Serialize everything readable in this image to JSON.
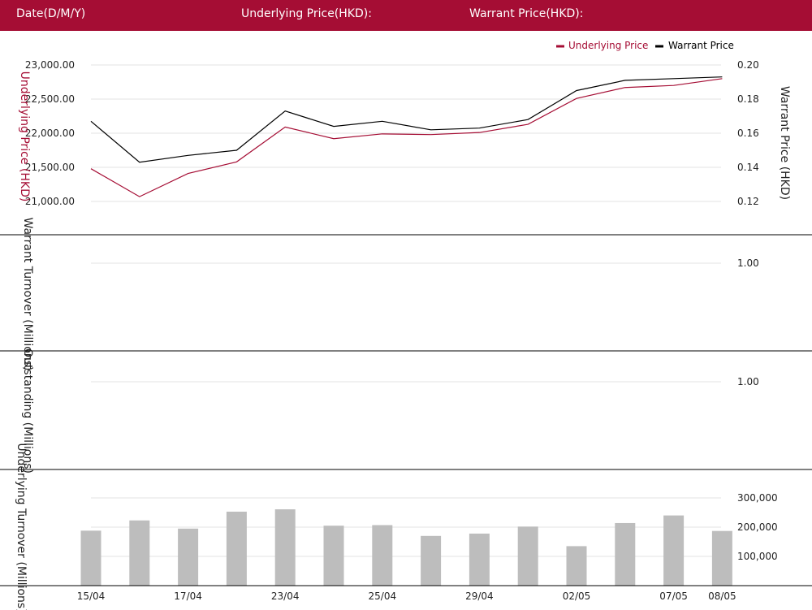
{
  "header": {
    "date_label": "Date(D/M/Y)",
    "underlying_label": "Underlying Price(HKD):",
    "warrant_label": "Warrant Price(HKD):"
  },
  "colors": {
    "brand": "#a50d34",
    "underlying_line": "#a50d34",
    "warrant_line": "#000000",
    "bars": "#bdbdbd",
    "grid": "#e3e3e3"
  },
  "chart_data": [
    {
      "type": "line",
      "legend": [
        "Underlying Price",
        "Warrant Price"
      ],
      "legend_position": "top-right",
      "ylabel": "Underlying Price (HKD)",
      "y2label": "Warrant  Price (HKD)",
      "y_ticks": [
        "23,000.00",
        "22,500.00",
        "22,000.00",
        "21,500.00",
        "21,000.00"
      ],
      "y_tick_values": [
        23000,
        22500,
        22000,
        21500,
        21000
      ],
      "y2_ticks": [
        "0.20",
        "0.18",
        "0.16",
        "0.14",
        "0.12"
      ],
      "y2_tick_values": [
        0.2,
        0.18,
        0.16,
        0.14,
        0.12
      ],
      "ylim": [
        20500,
        23000
      ],
      "y2lim": [
        0.1,
        0.2
      ],
      "grid": true,
      "series": [
        {
          "name": "Underlying Price",
          "axis": "left",
          "values": [
            21480,
            21070,
            21410,
            21580,
            22090,
            21920,
            21990,
            21980,
            22010,
            22130,
            22510,
            22670,
            22700,
            22800
          ]
        },
        {
          "name": "Warrant Price",
          "axis": "right",
          "values": [
            0.167,
            0.143,
            0.147,
            0.15,
            0.173,
            0.164,
            0.167,
            0.162,
            0.163,
            0.168,
            0.185,
            0.191,
            0.192,
            0.193
          ]
        }
      ]
    },
    {
      "type": "bar",
      "ylabel": "Warrant  Turnover (Millions)",
      "y_ticks": [
        "1.00"
      ],
      "y_tick_values": [
        1.0
      ],
      "ylim": [
        0,
        1.3
      ],
      "values": []
    },
    {
      "type": "bar",
      "ylabel": "Outstanding (Millions)",
      "y_ticks": [
        "1.00"
      ],
      "y_tick_values": [
        1.0
      ],
      "ylim": [
        0,
        1.3
      ],
      "values": []
    },
    {
      "type": "bar",
      "ylabel": "Underlying Turnover (Millions)",
      "y_ticks": [
        "300,000",
        "200,000",
        "100,000"
      ],
      "y_tick_values": [
        300000,
        200000,
        100000
      ],
      "ylim": [
        0,
        300000
      ],
      "values": [
        188000,
        223000,
        195000,
        253000,
        261000,
        205000,
        207000,
        170000,
        178000,
        202000,
        135000,
        214000,
        240000,
        187000
      ]
    }
  ],
  "x_axis": {
    "tick_labels": [
      "15/04",
      "17/04",
      "23/04",
      "25/04",
      "29/04",
      "02/05",
      "07/05",
      "08/05"
    ],
    "tick_index": [
      0,
      2,
      4,
      6,
      8,
      10,
      12,
      13
    ]
  }
}
